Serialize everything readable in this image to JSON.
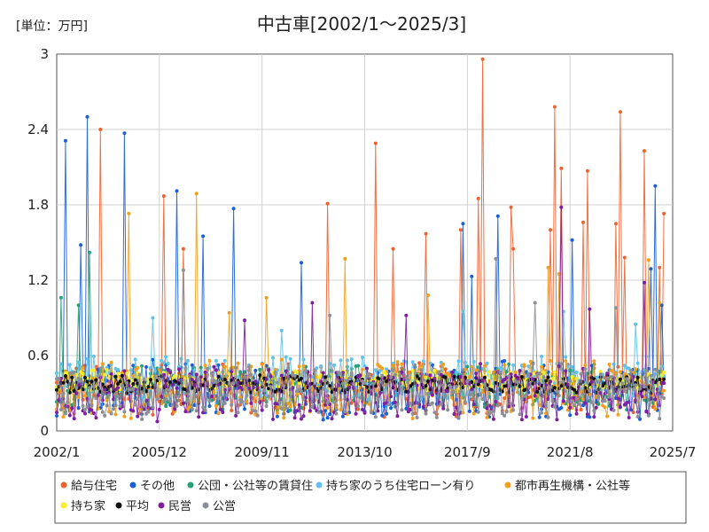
{
  "chart_data": {
    "type": "line",
    "title": "中古車[2002/1～2025/3]",
    "unit_label": "[単位：万円]",
    "xlabel": "",
    "ylabel": "",
    "x_start": "2002/1",
    "x_end": "2025/7",
    "x_ticks": [
      "2002/1",
      "2005/12",
      "2009/11",
      "2013/10",
      "2017/9",
      "2021/8",
      "2025/7"
    ],
    "y_ticks": [
      0,
      0.6,
      1.2,
      1.8,
      2.4,
      3
    ],
    "y_tick_labels": [
      "0",
      "0.6",
      "1.2",
      "1.8",
      "2.4",
      "3"
    ],
    "ylim": [
      0,
      3
    ],
    "grid": true,
    "legend_position": "bottom",
    "series": [
      {
        "name": "給与住宅",
        "color": "#f0622d",
        "base": 0.33,
        "noise": 0.15,
        "peaks": [
          [
            "2003/9",
            2.4
          ],
          [
            "2006/2",
            1.87
          ],
          [
            "2006/11",
            1.45
          ],
          [
            "2012/5",
            1.81
          ],
          [
            "2014/3",
            2.29
          ],
          [
            "2014/11",
            1.45
          ],
          [
            "2016/2",
            1.57
          ],
          [
            "2017/6",
            1.6
          ],
          [
            "2018/2",
            1.85
          ],
          [
            "2018/4",
            2.96
          ],
          [
            "2019/5",
            1.78
          ],
          [
            "2019/6",
            1.45
          ],
          [
            "2020/11",
            1.6
          ],
          [
            "2021/1",
            2.58
          ],
          [
            "2021/4",
            2.09
          ],
          [
            "2022/2",
            1.66
          ],
          [
            "2022/4",
            2.07
          ],
          [
            "2023/5",
            1.65
          ],
          [
            "2023/7",
            2.54
          ],
          [
            "2023/9",
            1.38
          ],
          [
            "2024/6",
            2.23
          ],
          [
            "2025/1",
            1.3
          ],
          [
            "2025/3",
            1.73
          ]
        ]
      },
      {
        "name": "その他",
        "color": "#1a5fd6",
        "base": 0.32,
        "noise": 0.16,
        "peaks": [
          [
            "2002/5",
            2.31
          ],
          [
            "2003/3",
            2.5
          ],
          [
            "2002/12",
            1.48
          ],
          [
            "2004/8",
            2.37
          ],
          [
            "2006/8",
            1.91
          ],
          [
            "2007/8",
            1.55
          ],
          [
            "2008/10",
            1.77
          ],
          [
            "2011/5",
            1.34
          ],
          [
            "2017/7",
            1.65
          ],
          [
            "2017/11",
            1.23
          ],
          [
            "2018/11",
            1.71
          ],
          [
            "2021/9",
            1.52
          ],
          [
            "2024/9",
            1.29
          ],
          [
            "2024/11",
            1.95
          ],
          [
            "2025/2",
            1.0
          ]
        ]
      },
      {
        "name": "公団・公社等の賃貸住",
        "color": "#26a27a",
        "base": 0.34,
        "noise": 0.13,
        "peaks": [
          [
            "2002/3",
            1.06
          ],
          [
            "2003/4",
            1.42
          ],
          [
            "2002/11",
            1.0
          ]
        ]
      },
      {
        "name": "持ち家のうち住宅ローン有り",
        "color": "#5fc3ea",
        "base": 0.42,
        "noise": 0.12,
        "peaks": [
          [
            "2005/9",
            0.9
          ],
          [
            "2010/8",
            0.8
          ],
          [
            "2017/7",
            0.95
          ],
          [
            "2021/5",
            0.95
          ],
          [
            "2024/2",
            0.85
          ]
        ]
      },
      {
        "name": "都市再生機構・公社等",
        "color": "#f2a01c",
        "base": 0.33,
        "noise": 0.16,
        "peaks": [
          [
            "2004/10",
            1.73
          ],
          [
            "2007/5",
            1.89
          ],
          [
            "2008/8",
            0.94
          ],
          [
            "2010/1",
            1.06
          ],
          [
            "2013/1",
            1.37
          ],
          [
            "2016/3",
            1.08
          ],
          [
            "2020/10",
            1.3
          ],
          [
            "2021/3",
            1.25
          ],
          [
            "2024/8",
            1.36
          ],
          [
            "2025/1",
            1.02
          ]
        ]
      },
      {
        "name": "持ち家",
        "color": "#f7ee2b",
        "base": 0.4,
        "noise": 0.06,
        "peaks": []
      },
      {
        "name": "平均",
        "color": "#111111",
        "base": 0.37,
        "noise": 0.05,
        "peaks": []
      },
      {
        "name": "民営",
        "color": "#7d1fa0",
        "base": 0.3,
        "noise": 0.15,
        "peaks": [
          [
            "2009/3",
            0.88
          ],
          [
            "2011/10",
            1.02
          ],
          [
            "2015/5",
            0.92
          ],
          [
            "2021/4",
            1.78
          ],
          [
            "2022/5",
            0.97
          ],
          [
            "2024/6",
            1.18
          ]
        ]
      },
      {
        "name": "公営",
        "color": "#8c8f96",
        "base": 0.31,
        "noise": 0.15,
        "peaks": [
          [
            "2006/11",
            1.28
          ],
          [
            "2012/6",
            0.92
          ],
          [
            "2018/10",
            1.37
          ],
          [
            "2020/4",
            1.02
          ],
          [
            "2023/5",
            0.98
          ]
        ]
      }
    ]
  }
}
